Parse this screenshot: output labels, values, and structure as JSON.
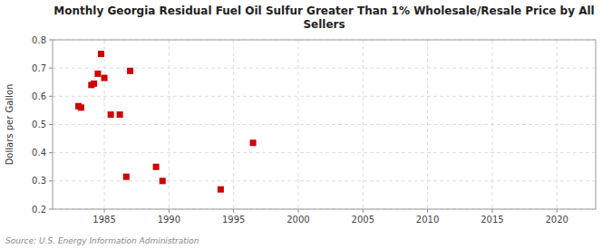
{
  "chart_data": {
    "type": "scatter",
    "title": "Monthly Georgia Residual Fuel Oil Sulfur Greater Than 1% Wholesale/Resale Price by All\nSellers",
    "y_label": "Dollars per Gallon",
    "source": "Source: U.S. Energy Information Administration",
    "x": [
      1983.0,
      1983.2,
      1984.0,
      1984.2,
      1984.5,
      1984.75,
      1985.0,
      1985.5,
      1986.2,
      1986.7,
      1987.0,
      1989.0,
      1989.5,
      1994.0,
      1996.5
    ],
    "values": [
      0.565,
      0.56,
      0.64,
      0.645,
      0.68,
      0.75,
      0.665,
      0.535,
      0.535,
      0.315,
      0.69,
      0.35,
      0.3,
      0.27,
      0.435
    ],
    "color": "#cc0000",
    "marker": "square",
    "xlim": [
      1981,
      2023
    ],
    "ylim": [
      0.2,
      0.8
    ],
    "xticks": [
      1985,
      1990,
      1995,
      2000,
      2005,
      2010,
      2015,
      2020
    ],
    "yticks": [
      0.2,
      0.3,
      0.4,
      0.5,
      0.6,
      0.7,
      0.8
    ],
    "grid": true
  }
}
